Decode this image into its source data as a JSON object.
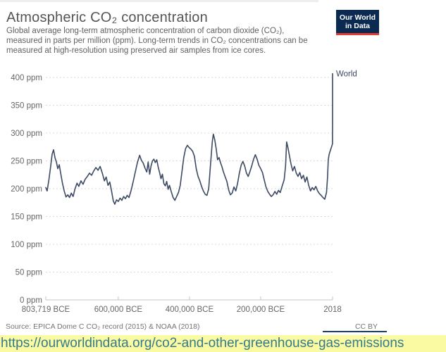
{
  "header": {
    "title": "Atmospheric CO₂ concentration",
    "subtitle_lines": [
      "Global average long-term atmospheric concentration of carbon dioxide (CO₂),",
      "measured in parts per million (ppm). Long-term trends in CO₂ concentrations can be",
      "measured at high-resolution using preserved air samples from ice cores."
    ],
    "logo_line1": "Our World",
    "logo_line2": "in Data",
    "logo_colors": {
      "background": "#0a2a52",
      "underline": "#e13d33",
      "text": "#ffffff"
    }
  },
  "footer": {
    "source": "Source: EPICA Dome C CO₂ record (2015) & NOAA (2018)",
    "license": "CC BY",
    "url": "https://ourworldindata.org/co2-and-other-greenhouse-gas-emissions",
    "url_bar_background": "#fafaa2",
    "url_text_color": "#35798e"
  },
  "chart_data": {
    "type": "line",
    "title": "Atmospheric CO₂ concentration",
    "xlabel": "",
    "ylabel": "ppm",
    "xlim": [
      -803719,
      2018
    ],
    "ylim": [
      0,
      400
    ],
    "grid": "dashed-horizontal",
    "legend_position": "end-of-line",
    "x_ticks": [
      {
        "year": -803719,
        "label": "803,719 BCE"
      },
      {
        "year": -600000,
        "label": "600,000 BCE"
      },
      {
        "year": -400000,
        "label": "400,000 BCE"
      },
      {
        "year": -200000,
        "label": "200,000 BCE"
      },
      {
        "year": 2018,
        "label": "2018"
      }
    ],
    "y_ticks": [
      {
        "value": 0,
        "label": "0 ppm"
      },
      {
        "value": 50,
        "label": "50 ppm"
      },
      {
        "value": 100,
        "label": "100 ppm"
      },
      {
        "value": 150,
        "label": "150 ppm"
      },
      {
        "value": 200,
        "label": "200 ppm"
      },
      {
        "value": 250,
        "label": "250 ppm"
      },
      {
        "value": 300,
        "label": "300 ppm"
      },
      {
        "value": 350,
        "label": "350 ppm"
      },
      {
        "value": 400,
        "label": "400 ppm"
      }
    ],
    "series": [
      {
        "name": "World",
        "color": "#3c4a63",
        "points": [
          [
            -803719,
            202
          ],
          [
            -800000,
            196
          ],
          [
            -795000,
            216
          ],
          [
            -790000,
            240
          ],
          [
            -786000,
            262
          ],
          [
            -782000,
            270
          ],
          [
            -778000,
            256
          ],
          [
            -774000,
            248
          ],
          [
            -770000,
            236
          ],
          [
            -766000,
            243
          ],
          [
            -762000,
            228
          ],
          [
            -757000,
            210
          ],
          [
            -752000,
            196
          ],
          [
            -747000,
            185
          ],
          [
            -742000,
            189
          ],
          [
            -737000,
            184
          ],
          [
            -732000,
            192
          ],
          [
            -727000,
            186
          ],
          [
            -722000,
            199
          ],
          [
            -716000,
            210
          ],
          [
            -711000,
            204
          ],
          [
            -705000,
            214
          ],
          [
            -699000,
            208
          ],
          [
            -693000,
            217
          ],
          [
            -687000,
            222
          ],
          [
            -681000,
            228
          ],
          [
            -675000,
            224
          ],
          [
            -669000,
            232
          ],
          [
            -663000,
            238
          ],
          [
            -657000,
            233
          ],
          [
            -651000,
            240
          ],
          [
            -645000,
            228
          ],
          [
            -639000,
            214
          ],
          [
            -634000,
            221
          ],
          [
            -629000,
            206
          ],
          [
            -624000,
            212
          ],
          [
            -619000,
            196
          ],
          [
            -614000,
            178
          ],
          [
            -610000,
            172
          ],
          [
            -605000,
            180
          ],
          [
            -600000,
            177
          ],
          [
            -595000,
            183
          ],
          [
            -590000,
            179
          ],
          [
            -585000,
            186
          ],
          [
            -580000,
            182
          ],
          [
            -575000,
            188
          ],
          [
            -570000,
            184
          ],
          [
            -564000,
            197
          ],
          [
            -558000,
            213
          ],
          [
            -552000,
            231
          ],
          [
            -546000,
            248
          ],
          [
            -540000,
            260
          ],
          [
            -535000,
            251
          ],
          [
            -530000,
            246
          ],
          [
            -525000,
            237
          ],
          [
            -520000,
            230
          ],
          [
            -516000,
            248
          ],
          [
            -512000,
            226
          ],
          [
            -508000,
            241
          ],
          [
            -504000,
            250
          ],
          [
            -500000,
            253
          ],
          [
            -496000,
            247
          ],
          [
            -492000,
            252
          ],
          [
            -488000,
            239
          ],
          [
            -484000,
            229
          ],
          [
            -480000,
            218
          ],
          [
            -476000,
            226
          ],
          [
            -472000,
            209
          ],
          [
            -468000,
            205
          ],
          [
            -464000,
            213
          ],
          [
            -460000,
            199
          ],
          [
            -456000,
            206
          ],
          [
            -451000,
            194
          ],
          [
            -446000,
            184
          ],
          [
            -441000,
            179
          ],
          [
            -436000,
            186
          ],
          [
            -431000,
            193
          ],
          [
            -426000,
            206
          ],
          [
            -421000,
            231
          ],
          [
            -416000,
            256
          ],
          [
            -411000,
            272
          ],
          [
            -406000,
            278
          ],
          [
            -401000,
            274
          ],
          [
            -396000,
            271
          ],
          [
            -391000,
            267
          ],
          [
            -386000,
            258
          ],
          [
            -381000,
            236
          ],
          [
            -376000,
            222
          ],
          [
            -371000,
            214
          ],
          [
            -366000,
            204
          ],
          [
            -361000,
            196
          ],
          [
            -356000,
            190
          ],
          [
            -351000,
            188
          ],
          [
            -346000,
            200
          ],
          [
            -341000,
            242
          ],
          [
            -336000,
            284
          ],
          [
            -333000,
            298
          ],
          [
            -329000,
            288
          ],
          [
            -325000,
            272
          ],
          [
            -321000,
            252
          ],
          [
            -317000,
            256
          ],
          [
            -313000,
            247
          ],
          [
            -309000,
            240
          ],
          [
            -305000,
            231
          ],
          [
            -300000,
            222
          ],
          [
            -295000,
            213
          ],
          [
            -290000,
            198
          ],
          [
            -285000,
            189
          ],
          [
            -280000,
            192
          ],
          [
            -275000,
            203
          ],
          [
            -270000,
            196
          ],
          [
            -265000,
            209
          ],
          [
            -260000,
            227
          ],
          [
            -255000,
            242
          ],
          [
            -250000,
            249
          ],
          [
            -245000,
            241
          ],
          [
            -240000,
            228
          ],
          [
            -235000,
            222
          ],
          [
            -230000,
            231
          ],
          [
            -225000,
            241
          ],
          [
            -220000,
            253
          ],
          [
            -215000,
            261
          ],
          [
            -210000,
            253
          ],
          [
            -205000,
            242
          ],
          [
            -200000,
            236
          ],
          [
            -195000,
            229
          ],
          [
            -190000,
            216
          ],
          [
            -185000,
            203
          ],
          [
            -180000,
            195
          ],
          [
            -175000,
            190
          ],
          [
            -170000,
            186
          ],
          [
            -165000,
            189
          ],
          [
            -160000,
            195
          ],
          [
            -155000,
            190
          ],
          [
            -150000,
            197
          ],
          [
            -145000,
            193
          ],
          [
            -140000,
            204
          ],
          [
            -134000,
            216
          ],
          [
            -130000,
            241
          ],
          [
            -127000,
            284
          ],
          [
            -124000,
            276
          ],
          [
            -120000,
            262
          ],
          [
            -115000,
            245
          ],
          [
            -110000,
            232
          ],
          [
            -105000,
            240
          ],
          [
            -100000,
            228
          ],
          [
            -95000,
            222
          ],
          [
            -90000,
            229
          ],
          [
            -85000,
            218
          ],
          [
            -80000,
            224
          ],
          [
            -75000,
            212
          ],
          [
            -70000,
            221
          ],
          [
            -65000,
            206
          ],
          [
            -60000,
            196
          ],
          [
            -55000,
            202
          ],
          [
            -50000,
            198
          ],
          [
            -45000,
            204
          ],
          [
            -40000,
            196
          ],
          [
            -35000,
            191
          ],
          [
            -30000,
            188
          ],
          [
            -25000,
            184
          ],
          [
            -20000,
            181
          ],
          [
            -15000,
            193
          ],
          [
            -12000,
            221
          ],
          [
            -10000,
            252
          ],
          [
            -8000,
            260
          ],
          [
            -6000,
            265
          ],
          [
            -4000,
            269
          ],
          [
            -2000,
            273
          ],
          [
            0,
            277
          ],
          [
            1000,
            279
          ],
          [
            1750,
            281
          ],
          [
            1850,
            286
          ],
          [
            1900,
            297
          ],
          [
            1950,
            312
          ],
          [
            1975,
            331
          ],
          [
            1990,
            354
          ],
          [
            2000,
            369
          ],
          [
            2010,
            389
          ],
          [
            2018,
            407
          ]
        ]
      }
    ]
  }
}
